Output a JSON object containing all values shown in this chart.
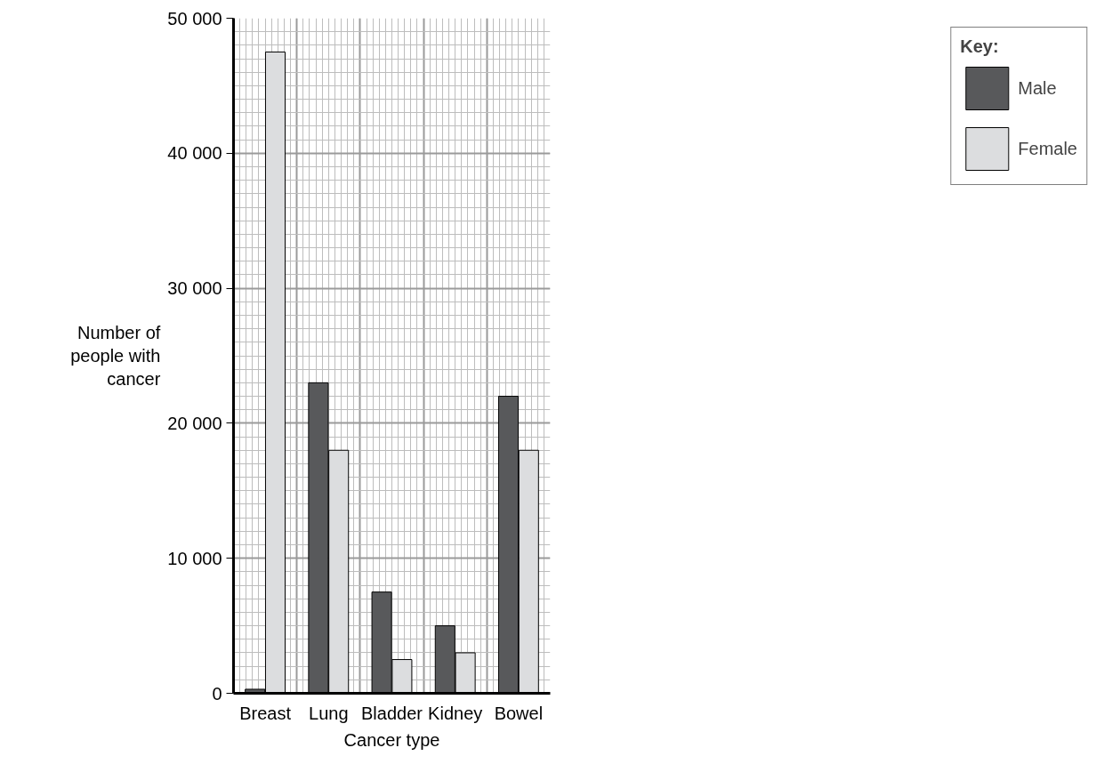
{
  "chart_data": {
    "type": "bar",
    "xlabel": "Cancer type",
    "ylabel": "Number of people with cancer",
    "legend_title": "Key:",
    "categories": [
      "Breast",
      "Lung",
      "Bladder",
      "Kidney",
      "Bowel"
    ],
    "series": [
      {
        "name": "Male",
        "color": "#58595b",
        "values": [
          300,
          23000,
          7500,
          5000,
          22000
        ]
      },
      {
        "name": "Female",
        "color": "#dcdddf",
        "values": [
          47500,
          18000,
          2500,
          3000,
          18000
        ]
      }
    ],
    "ylim": [
      0,
      50000
    ],
    "yticks": [
      {
        "value": 0,
        "label": "0"
      },
      {
        "value": 10000,
        "label": "10 000"
      },
      {
        "value": 20000,
        "label": "20 000"
      },
      {
        "value": 30000,
        "label": "30 000"
      },
      {
        "value": 40000,
        "label": "40 000"
      },
      {
        "value": 50000,
        "label": "50 000"
      }
    ],
    "grid": true,
    "legend": "right"
  }
}
